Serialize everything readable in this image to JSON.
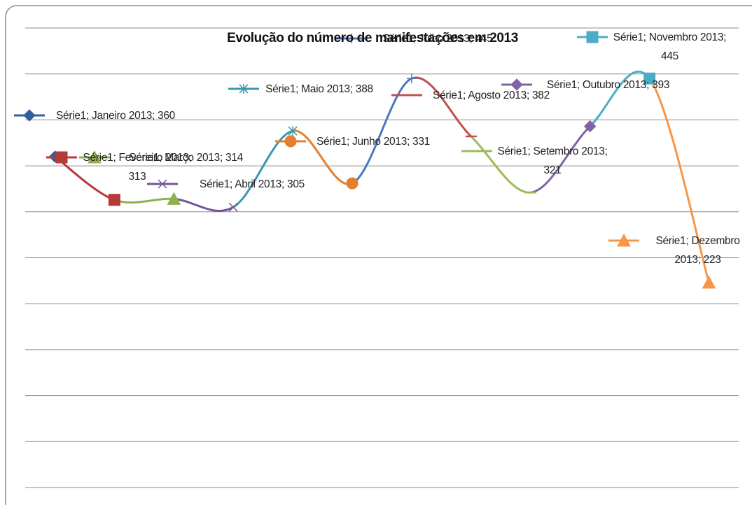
{
  "chart_data": {
    "type": "line",
    "title": "Evolução do número de manifestações em 2013",
    "series": [
      {
        "values": [
          360,
          313,
          314,
          305,
          388,
          331,
          445,
          382,
          321,
          393,
          445,
          223
        ],
        "value_labels": [
          "Série1; Janeiro 2013; 360",
          "Série1; Fevereiro 2013; 313",
          "Série1; Março 2013; 314",
          "Série1; Abril 2013; 305",
          "Série1; Maio 2013; 388",
          "Série1; Junho 2013; 331",
          "Série1; Julho 2013; 445",
          "Série1; Agosto 2013; 382",
          "Série1; Setembro 2013; 321",
          "Série1; Outubro 2013; 393",
          "Série1; Novembro 2013; 445",
          "Série1; Dezembro 2013; 223"
        ],
        "colors": [
          "#2f5f9e",
          "#b53b39",
          "#8fb04f",
          "#71569a",
          "#3a97ad",
          "#e2802f",
          "#4a78c0",
          "#c0504d",
          "#9bbb59",
          "#8064a2",
          "#4bacc6",
          "#f79646"
        ],
        "markers": [
          "diamond",
          "square",
          "triangle",
          "x",
          "star",
          "circle",
          "plus",
          "dash",
          "dash",
          "diamond",
          "square",
          "triangle"
        ]
      }
    ],
    "ylim": [
      0,
      500
    ],
    "yticks": [
      0,
      50,
      100,
      150,
      200,
      250,
      300,
      350,
      400,
      450,
      500
    ],
    "grid": true,
    "smooth": true
  }
}
